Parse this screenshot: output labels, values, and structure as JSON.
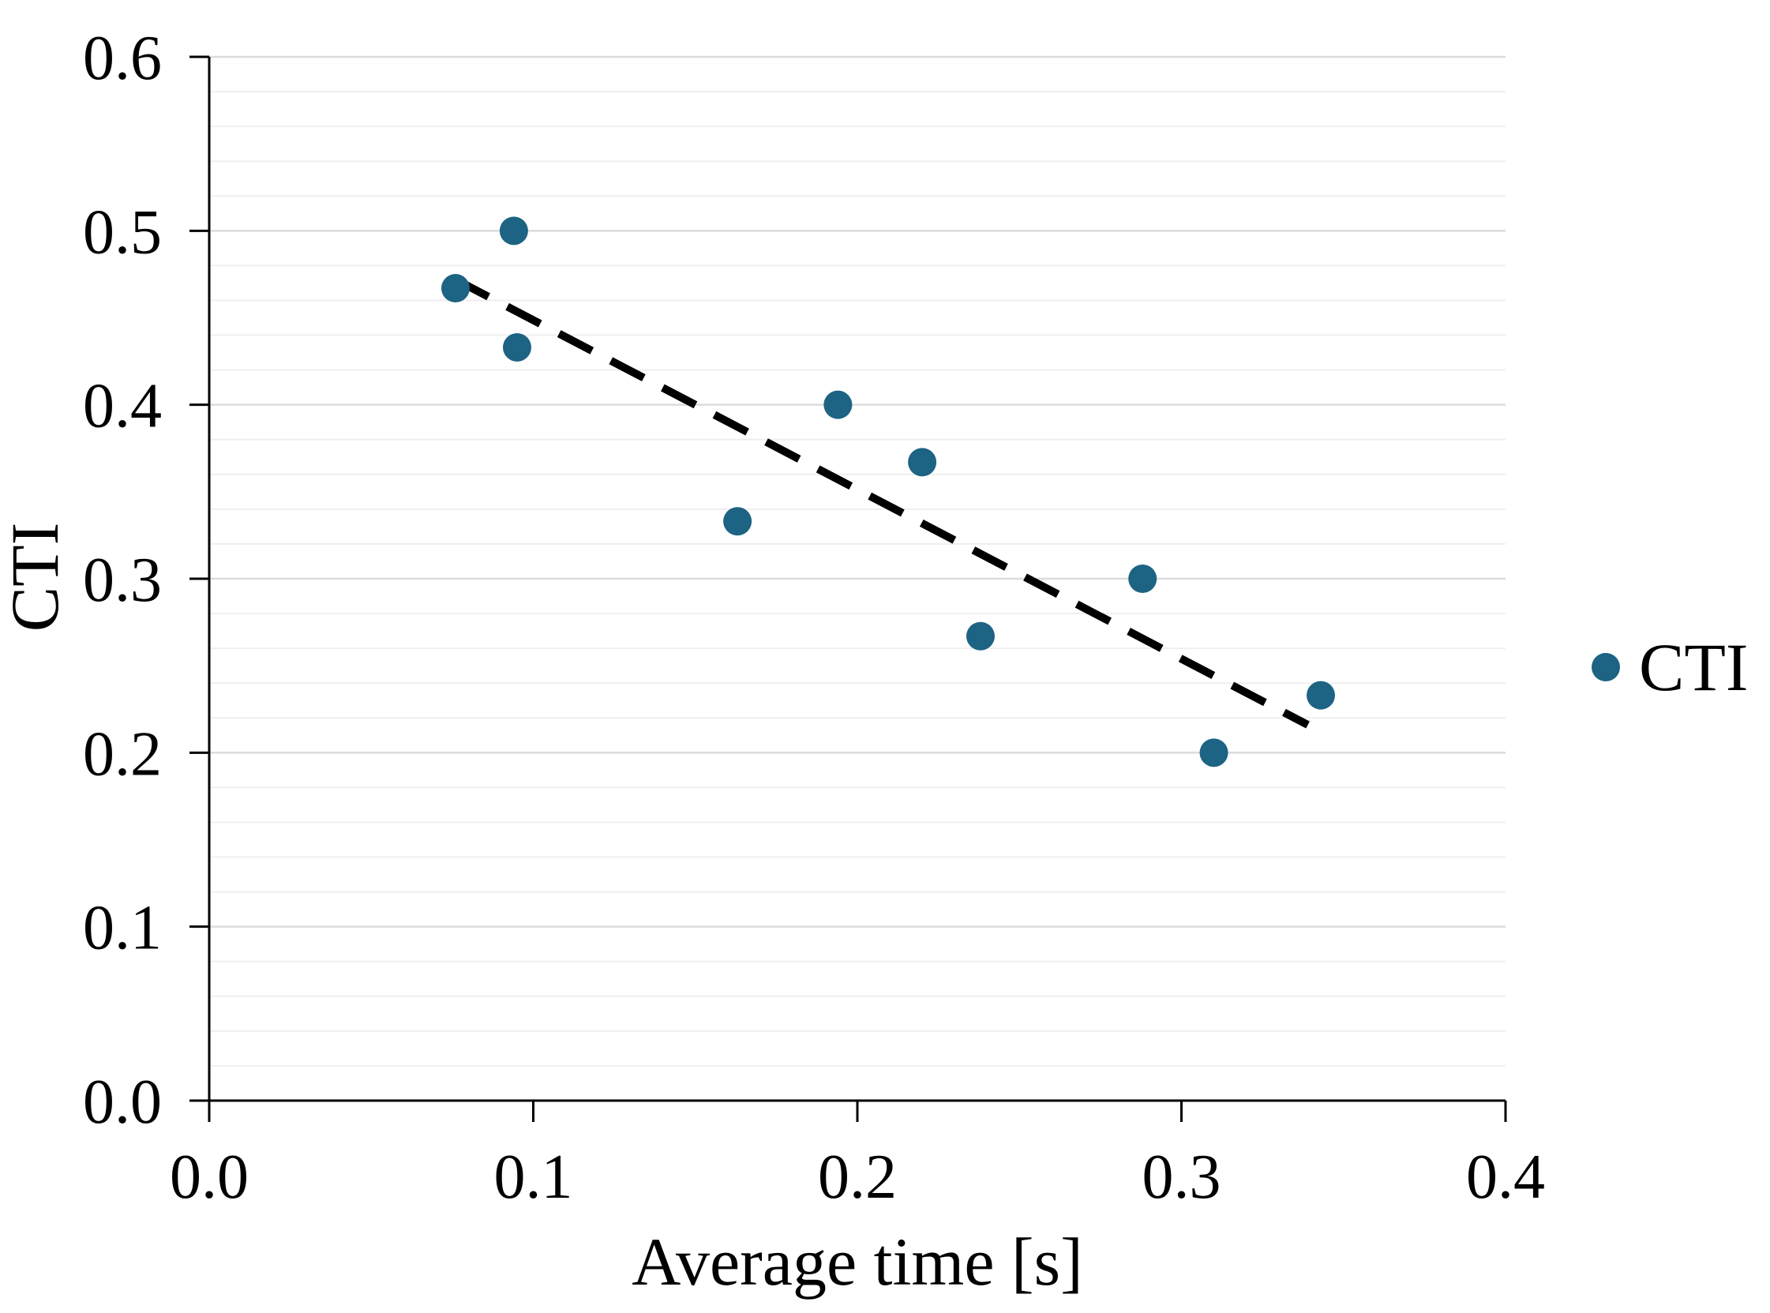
{
  "chart_data": {
    "type": "scatter",
    "title": "",
    "xlabel": "Average time [s]",
    "ylabel": "CTI",
    "xlim": [
      0.0,
      0.4
    ],
    "ylim": [
      0.0,
      0.6
    ],
    "grid": "horizontal-minor",
    "minor_grid_step_y": 0.02,
    "xticks": {
      "values": [
        0.0,
        0.1,
        0.2,
        0.3,
        0.4
      ],
      "labels": [
        "0.0",
        "0.1",
        "0.2",
        "0.3",
        "0.4"
      ]
    },
    "yticks": {
      "values": [
        0.0,
        0.1,
        0.2,
        0.3,
        0.4,
        0.5,
        0.6
      ],
      "labels": [
        "0.0",
        "0.1",
        "0.2",
        "0.3",
        "0.4",
        "0.5",
        "0.6"
      ]
    },
    "legend": {
      "position": "right",
      "entries": [
        {
          "label": "CTI",
          "marker": "circle"
        }
      ]
    },
    "series": [
      {
        "name": "CTI",
        "type": "scatter",
        "points": [
          [
            0.076,
            0.467
          ],
          [
            0.094,
            0.5
          ],
          [
            0.095,
            0.433
          ],
          [
            0.163,
            0.333
          ],
          [
            0.194,
            0.4
          ],
          [
            0.22,
            0.367
          ],
          [
            0.238,
            0.267
          ],
          [
            0.288,
            0.3
          ],
          [
            0.31,
            0.2
          ],
          [
            0.343,
            0.233
          ]
        ]
      },
      {
        "name": "trendline",
        "type": "line",
        "style": "dashed",
        "points": [
          [
            0.076,
            0.472
          ],
          [
            0.339,
            0.216
          ]
        ]
      }
    ],
    "colors": {
      "point": "#1D6383",
      "trend": "#000000",
      "axis": "#000000",
      "grid_minor": "#EFEFEF",
      "grid_major": "#DCDCDC",
      "background": "#FFFFFF"
    }
  }
}
